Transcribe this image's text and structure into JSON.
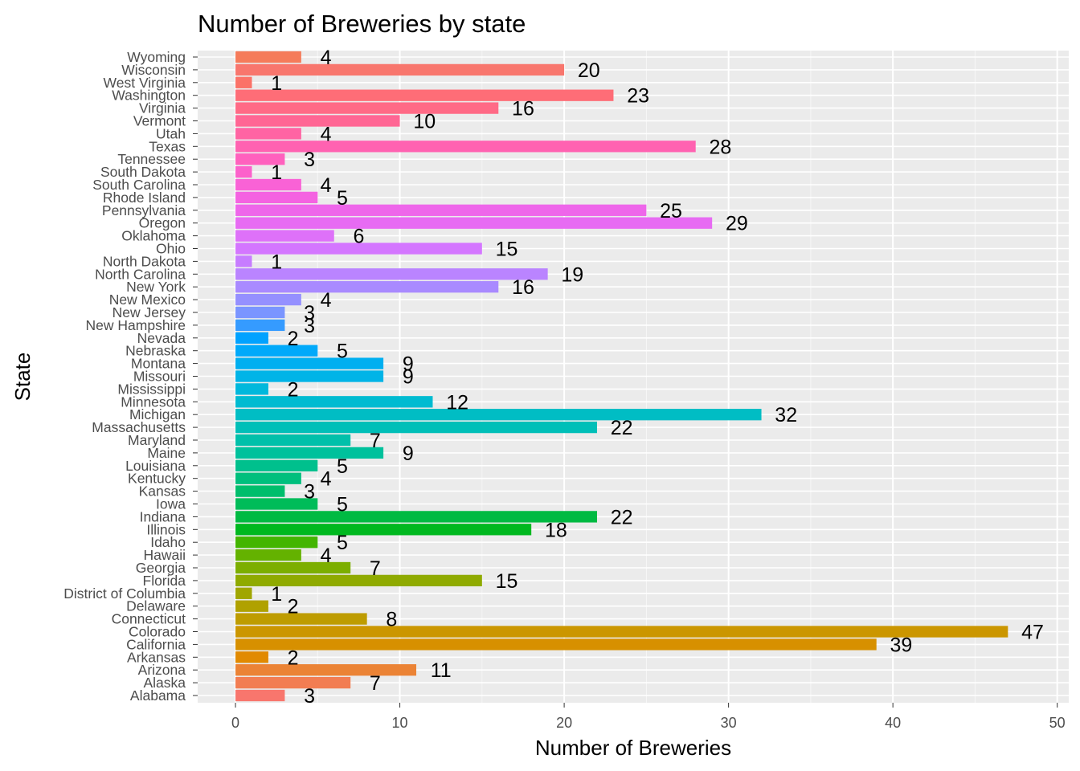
{
  "chart_data": {
    "type": "bar",
    "orientation": "horizontal",
    "title": "Number of Breweries by state",
    "xlabel": "Number of Breweries",
    "ylabel": "State",
    "xlim": [
      -2.3,
      50.7
    ],
    "xticks": [
      0,
      10,
      20,
      30,
      40,
      50
    ],
    "grid": true,
    "legend": "none",
    "categories": [
      "Alabama",
      "Alaska",
      "Arizona",
      "Arkansas",
      "California",
      "Colorado",
      "Connecticut",
      "Delaware",
      "District of Columbia",
      "Florida",
      "Georgia",
      "Hawaii",
      "Idaho",
      "Illinois",
      "Indiana",
      "Iowa",
      "Kansas",
      "Kentucky",
      "Louisiana",
      "Maine",
      "Maryland",
      "Massachusetts",
      "Michigan",
      "Minnesota",
      "Mississippi",
      "Missouri",
      "Montana",
      "Nebraska",
      "Nevada",
      "New Hampshire",
      "New Jersey",
      "New Mexico",
      "New York",
      "North Carolina",
      "North Dakota",
      "Ohio",
      "Oklahoma",
      "Oregon",
      "Pennsylvania",
      "Rhode Island",
      "South Carolina",
      "South Dakota",
      "Tennessee",
      "Texas",
      "Utah",
      "Vermont",
      "Virginia",
      "Washington",
      "West Virginia",
      "Wisconsin",
      "Wyoming"
    ],
    "values": [
      3,
      7,
      11,
      2,
      39,
      47,
      8,
      2,
      1,
      15,
      7,
      4,
      5,
      18,
      22,
      5,
      3,
      4,
      5,
      9,
      7,
      22,
      32,
      12,
      2,
      9,
      9,
      5,
      2,
      3,
      3,
      4,
      16,
      19,
      1,
      15,
      6,
      29,
      25,
      5,
      4,
      1,
      3,
      28,
      4,
      10,
      16,
      23,
      1,
      20,
      4
    ],
    "colors": [
      "#F8766D",
      "#F27D52",
      "#EB8335",
      "#E18A00",
      "#D79000",
      "#CB9600",
      "#BE9C00",
      "#B0A100",
      "#A0A600",
      "#8FAA00",
      "#7CAE00",
      "#64B200",
      "#43B500",
      "#00B81F",
      "#00BA42",
      "#00BC59",
      "#00BE6C",
      "#00BF7D",
      "#00C08D",
      "#00C19C",
      "#00C0AA",
      "#00BFB8",
      "#00BDC4",
      "#00BBD1",
      "#00B8DC",
      "#00B4E7",
      "#00AFF0",
      "#00A9FA",
      "#00A2FF",
      "#359BFF",
      "#7A95FF",
      "#9590FF",
      "#A98AFF",
      "#BA84FF",
      "#C77CFF",
      "#D476FF",
      "#DE71F9",
      "#E76BF3",
      "#EE66EA",
      "#F463E1",
      "#F962D6",
      "#FC61CB",
      "#FF61BE",
      "#FF62B1",
      "#FF64A3",
      "#FF6694",
      "#FF6A86",
      "#FE6D77",
      "#FB7268",
      "#F8766D",
      "#F57B5A"
    ]
  }
}
